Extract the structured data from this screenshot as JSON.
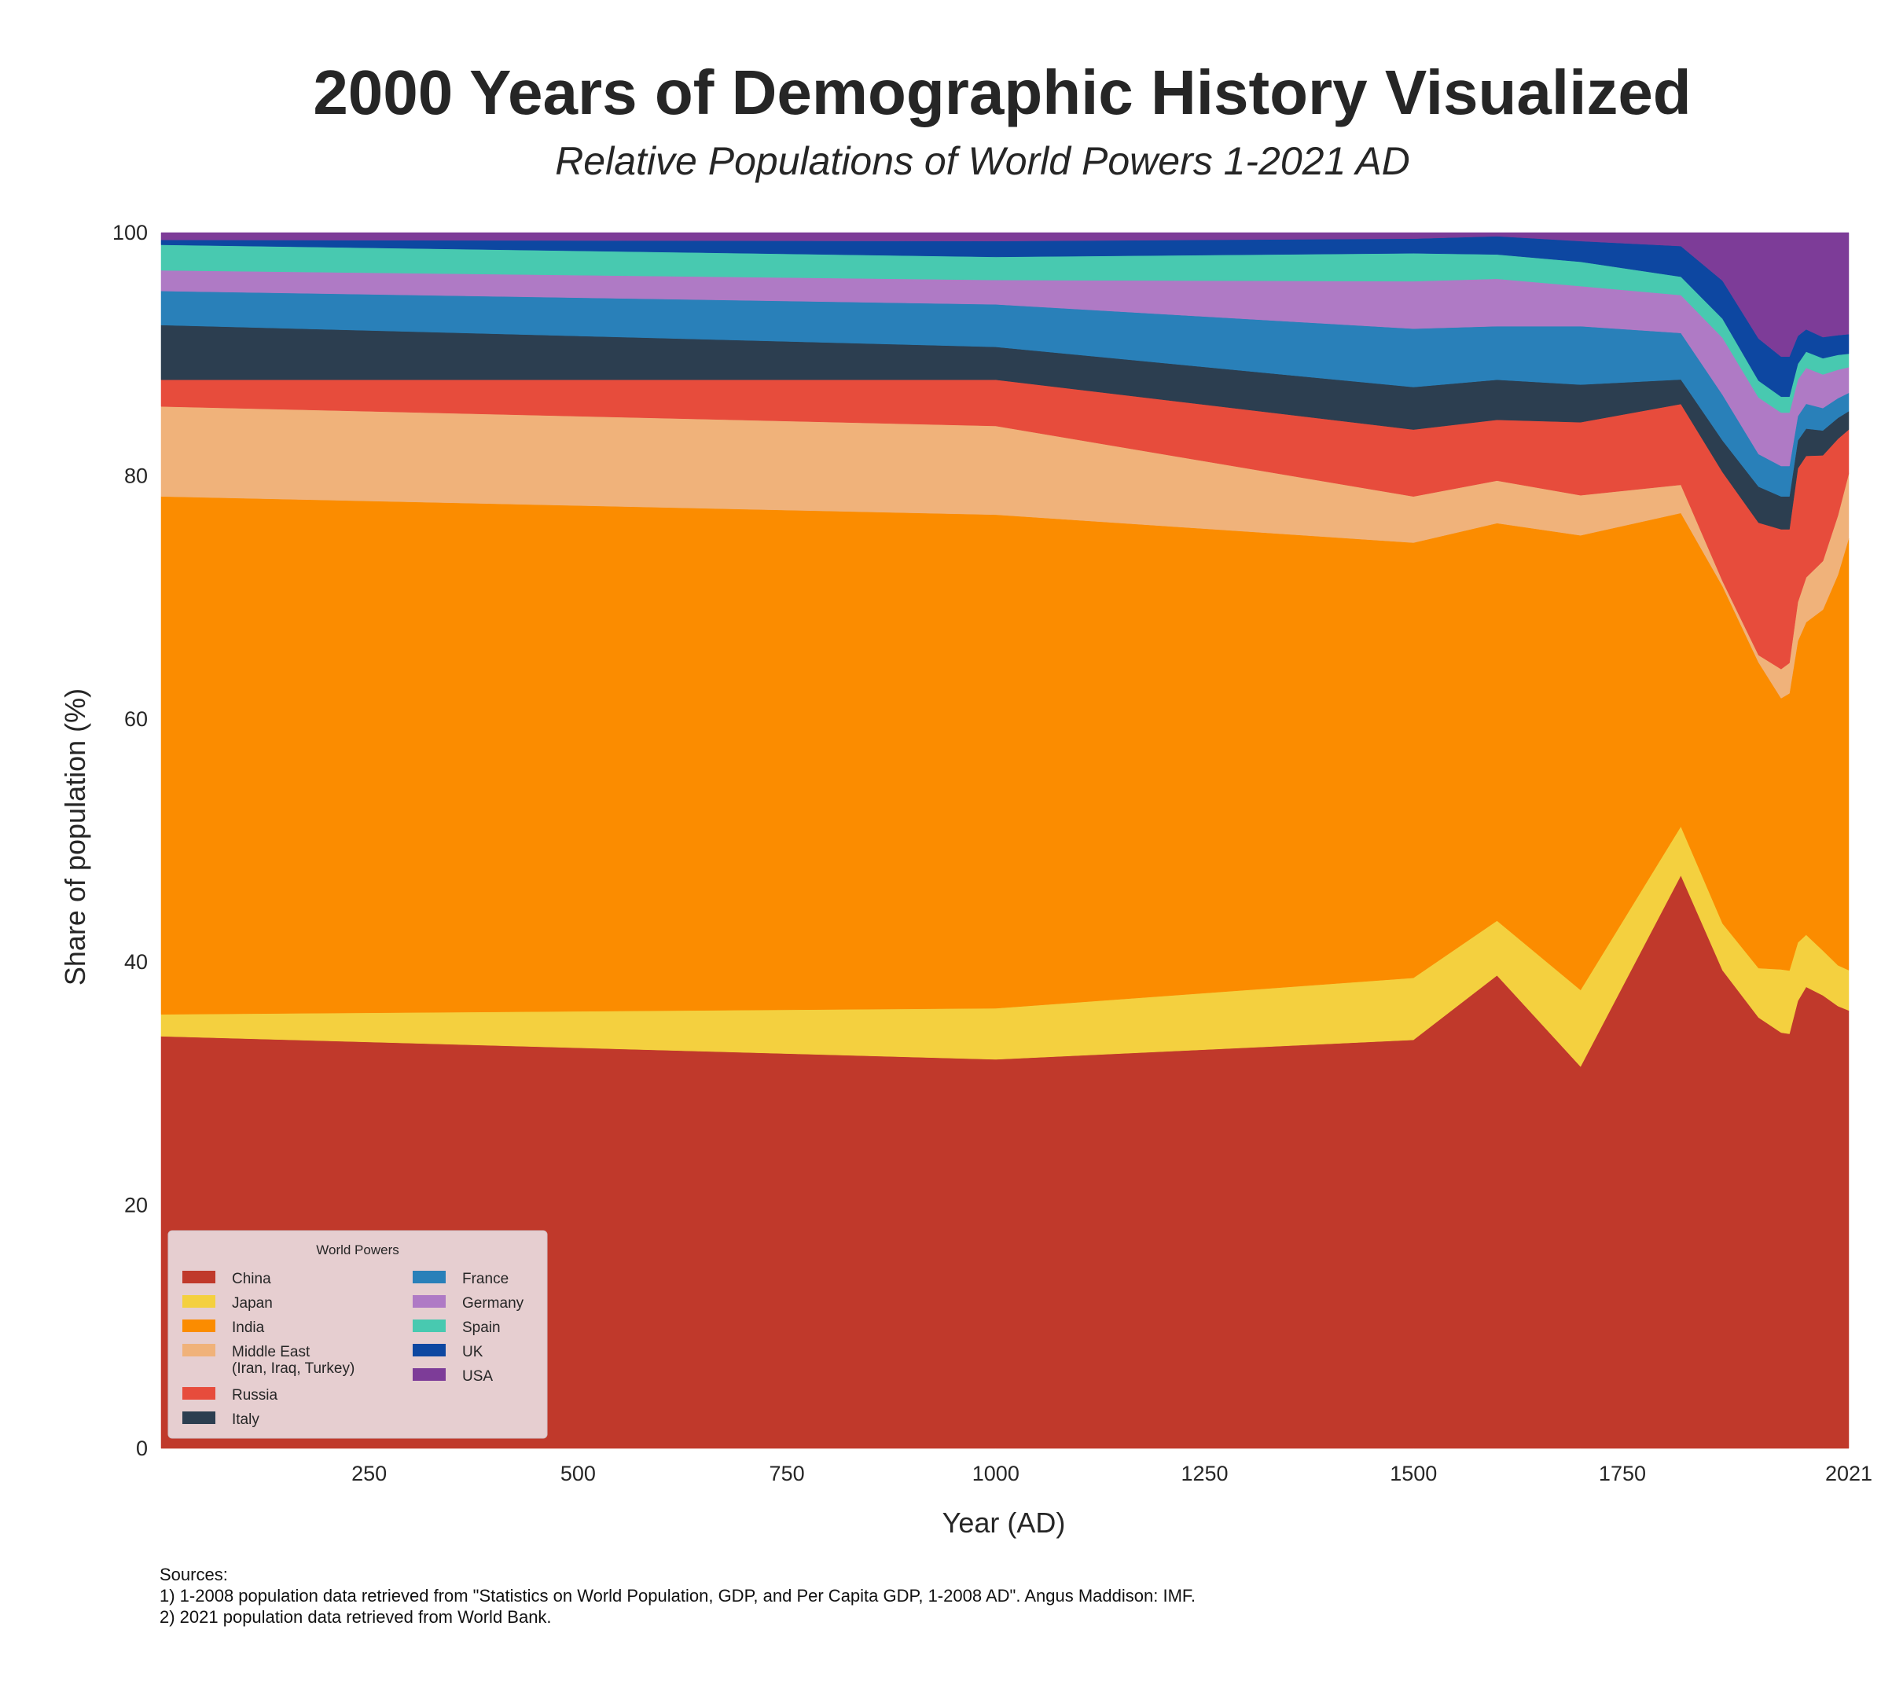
{
  "chart_data": {
    "type": "area",
    "stacked": true,
    "title": "2000 Years of Demographic History Visualized",
    "subtitle": "Relative Populations of World Powers 1-2021 AD",
    "xlabel": "Year (AD)",
    "ylabel": "Share of population (%)",
    "xlim": [
      1,
      2021
    ],
    "ylim": [
      0,
      100
    ],
    "xticks": [
      250,
      500,
      750,
      1000,
      1250,
      1500,
      1750,
      2021
    ],
    "yticks": [
      0,
      20,
      40,
      60,
      80,
      100
    ],
    "grid": false,
    "legend": {
      "title": "World Powers",
      "placement": "lower-left",
      "columns": 2
    },
    "x": [
      1,
      1000,
      1500,
      1600,
      1700,
      1820,
      1870,
      1913,
      1940,
      1950,
      1960,
      1970,
      1990,
      2008,
      2021
    ],
    "series": [
      {
        "name": "China",
        "color": "#c0392b",
        "values": [
          33.9,
          32.0,
          33.6,
          38.9,
          31.4,
          46.8,
          37.7,
          35.8,
          34.2,
          34.1,
          36.8,
          37.2,
          36.4,
          35.8,
          35.8
        ]
      },
      {
        "name": "Japan",
        "color": "#f4d03f",
        "values": [
          1.8,
          4.2,
          5.1,
          4.5,
          6.3,
          4.0,
          3.7,
          4.1,
          5.2,
          5.2,
          4.8,
          4.2,
          3.6,
          3.3,
          3.3
        ]
      },
      {
        "name": "India",
        "color": "#fb8c00",
        "values": [
          42.6,
          40.6,
          35.8,
          32.7,
          37.4,
          25.6,
          26.6,
          25.4,
          22.3,
          22.8,
          24.8,
          25.2,
          27.4,
          31.6,
          35.3
        ]
      },
      {
        "name": "Middle East\n(Iran, Iraq, Turkey)",
        "color": "#f0b27a",
        "values": [
          7.4,
          7.3,
          3.8,
          3.5,
          3.3,
          2.3,
          0.4,
          0.6,
          2.4,
          2.5,
          3.2,
          3.6,
          3.9,
          4.8,
          5.3
        ]
      },
      {
        "name": "Russia",
        "color": "#e74c3c",
        "values": [
          2.2,
          3.8,
          5.5,
          5.0,
          6.0,
          6.6,
          8.6,
          11.0,
          11.5,
          11.0,
          11.0,
          9.8,
          8.5,
          6.2,
          3.6
        ]
      },
      {
        "name": "Italy",
        "color": "#2c3e50",
        "values": [
          4.5,
          2.7,
          3.5,
          3.3,
          3.1,
          2.0,
          2.5,
          3.0,
          2.7,
          2.7,
          2.3,
          2.2,
          2.0,
          1.7,
          1.5
        ]
      },
      {
        "name": "France",
        "color": "#2980b9",
        "values": [
          2.8,
          3.5,
          4.8,
          4.4,
          4.8,
          3.8,
          3.6,
          2.7,
          2.5,
          2.5,
          2.0,
          2.0,
          1.8,
          1.6,
          1.5
        ]
      },
      {
        "name": "Germany",
        "color": "#af7ac5",
        "values": [
          1.7,
          2.0,
          3.9,
          3.9,
          3.3,
          3.1,
          4.5,
          4.7,
          4.4,
          4.4,
          3.0,
          2.9,
          2.7,
          2.3,
          2.1
        ]
      },
      {
        "name": "Spain",
        "color": "#48c9b0",
        "values": [
          2.1,
          1.9,
          2.3,
          2.0,
          2.0,
          1.5,
          1.5,
          1.4,
          1.3,
          1.3,
          1.3,
          1.3,
          1.3,
          1.2,
          1.1
        ]
      },
      {
        "name": "UK",
        "color": "#0d47a1",
        "values": [
          0.4,
          1.3,
          1.2,
          1.5,
          1.7,
          2.5,
          3.0,
          3.5,
          3.3,
          3.3,
          2.3,
          1.8,
          1.7,
          1.6,
          1.6
        ]
      },
      {
        "name": "USA",
        "color": "#7d3c98",
        "values": [
          0.6,
          0.7,
          0.5,
          0.3,
          0.7,
          1.1,
          3.8,
          8.8,
          10.2,
          10.2,
          8.5,
          7.8,
          8.4,
          8.3,
          8.3
        ]
      }
    ]
  },
  "sources": {
    "heading": "Sources:",
    "line1": "1) 1-2008 population data retrieved from \"Statistics on World Population, GDP, and Per Capita GDP, 1-2008 AD\". Angus Maddison: IMF.",
    "line2": "2) 2021 population data retrieved from World Bank."
  }
}
